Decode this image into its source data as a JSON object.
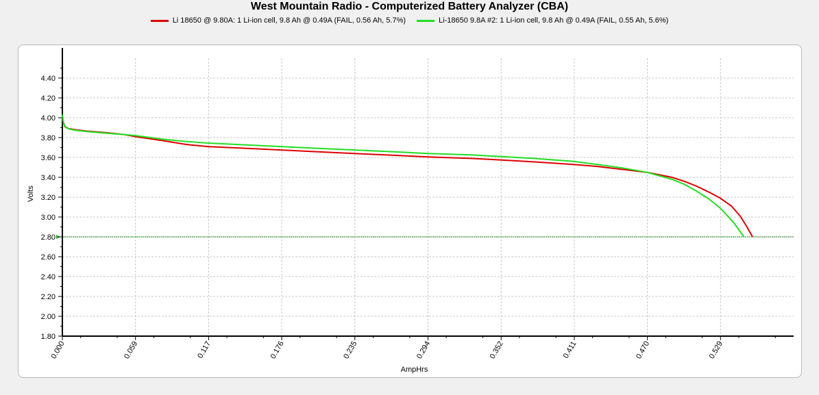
{
  "chart_data": {
    "type": "line",
    "title": "West Mountain Radio - Computerized Battery Analyzer (CBA)",
    "xlabel": "AmpHrs",
    "ylabel": "Volts",
    "xlim": [
      0,
      0.588
    ],
    "ylim": [
      1.8,
      4.6
    ],
    "x_ticks": [
      "0.000",
      "0.059",
      "0.117",
      "0.176",
      "0.235",
      "0.294",
      "0.352",
      "0.411",
      "0.470",
      "0.529"
    ],
    "x_tick_values": [
      0,
      0.0588,
      0.1176,
      0.1764,
      0.2352,
      0.294,
      0.3528,
      0.4116,
      0.4704,
      0.5292
    ],
    "y_ticks": [
      "1.80",
      "2.00",
      "2.20",
      "2.40",
      "2.60",
      "2.80",
      "3.00",
      "3.20",
      "3.40",
      "3.60",
      "3.80",
      "4.00",
      "4.20",
      "4.40"
    ],
    "y_tick_values": [
      1.8,
      2.0,
      2.2,
      2.4,
      2.6,
      2.8,
      3.0,
      3.2,
      3.4,
      3.6,
      3.8,
      4.0,
      4.2,
      4.4
    ],
    "threshold": 2.8,
    "grid": true,
    "legend_position": "top",
    "series": [
      {
        "name": "Li 18650 @ 9.80A: 1 Li-ion cell, 9.8 Ah @ 0.49A (FAIL, 0.56 Ah, 5.7%)",
        "color": "#dd0000",
        "x": [
          0,
          0.002,
          0.005,
          0.01,
          0.02,
          0.035,
          0.05,
          0.059,
          0.08,
          0.1,
          0.117,
          0.15,
          0.176,
          0.2,
          0.235,
          0.27,
          0.294,
          0.33,
          0.352,
          0.38,
          0.411,
          0.43,
          0.45,
          0.47,
          0.49,
          0.5,
          0.51,
          0.52,
          0.529,
          0.538,
          0.545,
          0.55,
          0.555
        ],
        "y": [
          3.99,
          3.91,
          3.89,
          3.88,
          3.865,
          3.85,
          3.83,
          3.81,
          3.77,
          3.73,
          3.71,
          3.69,
          3.675,
          3.66,
          3.64,
          3.62,
          3.605,
          3.59,
          3.575,
          3.555,
          3.53,
          3.51,
          3.48,
          3.45,
          3.4,
          3.36,
          3.31,
          3.25,
          3.19,
          3.11,
          3.01,
          2.91,
          2.8
        ]
      },
      {
        "name": "Li-18650 9.8A #2: 1 Li-ion cell, 9.8 Ah @ 0.49A (FAIL, 0.55 Ah, 5.6%)",
        "color": "#22dd22",
        "x": [
          0,
          0.001,
          0.003,
          0.006,
          0.01,
          0.02,
          0.035,
          0.05,
          0.059,
          0.08,
          0.1,
          0.117,
          0.15,
          0.176,
          0.2,
          0.235,
          0.27,
          0.294,
          0.33,
          0.352,
          0.38,
          0.411,
          0.43,
          0.45,
          0.47,
          0.49,
          0.5,
          0.51,
          0.52,
          0.529,
          0.535,
          0.54,
          0.544,
          0.548
        ],
        "y": [
          4.03,
          3.94,
          3.9,
          3.885,
          3.875,
          3.86,
          3.845,
          3.83,
          3.82,
          3.785,
          3.76,
          3.745,
          3.725,
          3.71,
          3.695,
          3.675,
          3.655,
          3.64,
          3.625,
          3.61,
          3.59,
          3.56,
          3.53,
          3.495,
          3.45,
          3.38,
          3.33,
          3.26,
          3.18,
          3.09,
          3.01,
          2.94,
          2.87,
          2.8
        ]
      }
    ]
  }
}
